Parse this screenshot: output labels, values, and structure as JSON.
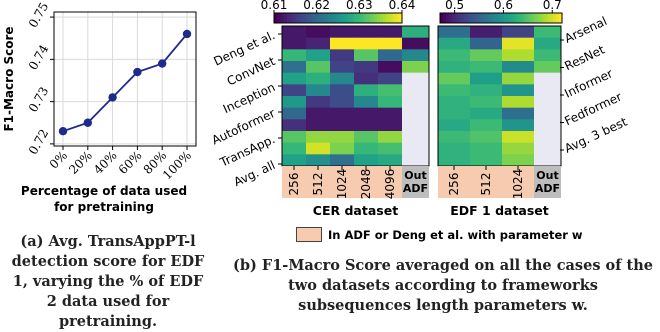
{
  "chart_data": [
    {
      "type": "line",
      "panel": "a",
      "xlabel": "Percentage of data used for pretraining",
      "xlabel_lines": [
        "Percentage of data used",
        "for pretraining"
      ],
      "ylabel": "F1-Macro Score",
      "x": [
        "0%",
        "20%",
        "40%",
        "60%",
        "80%",
        "100%"
      ],
      "values": [
        0.723,
        0.725,
        0.731,
        0.737,
        0.739,
        0.746
      ],
      "yticks": [
        "0.72",
        "0.73",
        "0.74",
        "0.75"
      ],
      "ylim": [
        0.7195,
        0.7512
      ],
      "grid": true,
      "line_color": "#1f2a8a"
    },
    {
      "type": "heatmap",
      "panel": "b",
      "colorbar_ticks_cer": [
        "0.61",
        "0.62",
        "0.63",
        "0.64"
      ],
      "colorbar_ticks_edf": [
        "0.5",
        "0.6",
        "0.7"
      ],
      "rows_left": [
        "Deng et al.",
        "ConvNet",
        "Inception",
        "Autoformer",
        "TransApp.",
        "Avg. all"
      ],
      "rows_right": [
        "Arsenal",
        "ResNet",
        "Informer",
        "Fedformer",
        "Avg. 3 best"
      ],
      "cer": {
        "title": "CER dataset",
        "columns": [
          "256",
          "512",
          "1024",
          "2048",
          "4096"
        ],
        "out_label": "Out ADF",
        "vmin": 0.61,
        "vmax": 0.64,
        "values": [
          [
            0.612,
            0.611,
            0.612,
            0.612,
            0.612
          ],
          [
            0.612,
            0.613,
            0.64,
            0.64,
            0.64
          ],
          [
            0.63,
            0.627,
            0.615,
            0.632,
            0.62
          ],
          [
            0.621,
            0.632,
            0.616,
            0.615,
            0.611
          ],
          [
            0.627,
            0.629,
            0.624,
            0.614,
            0.616
          ],
          [
            0.616,
            0.624,
            0.617,
            0.629,
            0.631
          ],
          [
            0.626,
            0.615,
            0.617,
            0.624,
            0.63
          ],
          [
            0.62,
            0.612,
            0.612,
            0.612,
            0.612
          ],
          [
            0.614,
            0.612,
            0.612,
            0.612,
            0.612
          ],
          [
            0.632,
            0.635,
            0.635,
            0.632,
            0.635
          ],
          [
            0.63,
            0.638,
            0.634,
            0.63,
            0.631
          ],
          [
            0.627,
            0.625,
            0.621,
            0.627,
            0.628
          ]
        ],
        "out_values": [
          0.629,
          0.611,
          0.624,
          0.634
        ]
      },
      "edf": {
        "title": "EDF 1 dataset",
        "columns": [
          "256",
          "512",
          "1024"
        ],
        "out_label": "Out ADF",
        "vmin": 0.47,
        "vmax": 0.72,
        "values": [
          [
            0.56,
            0.49,
            0.52
          ],
          [
            0.62,
            0.55,
            0.71
          ],
          [
            0.64,
            0.66,
            0.69
          ],
          [
            0.63,
            0.64,
            0.59
          ],
          [
            0.66,
            0.61,
            0.68
          ],
          [
            0.64,
            0.63,
            0.6
          ],
          [
            0.63,
            0.64,
            0.69
          ],
          [
            0.63,
            0.62,
            0.56
          ],
          [
            0.62,
            0.64,
            0.6
          ],
          [
            0.64,
            0.65,
            0.7
          ],
          [
            0.63,
            0.64,
            0.68
          ],
          [
            0.63,
            0.64,
            0.67
          ]
        ],
        "out_values": [
          0.64,
          0.62,
          0.64,
          0.66
        ]
      },
      "legend_label": "In ADF or Deng et al. with parameter w",
      "legend_color": "#f6cbb0"
    }
  ],
  "captions": {
    "a": "(a) Avg. TransAppPT-l detection score for EDF 1, varying the % of EDF 2 data used for pretraining.",
    "b": "(b) F1-Macro Score averaged on all the cases of the two datasets according to frameworks subsequences length parameters w."
  }
}
